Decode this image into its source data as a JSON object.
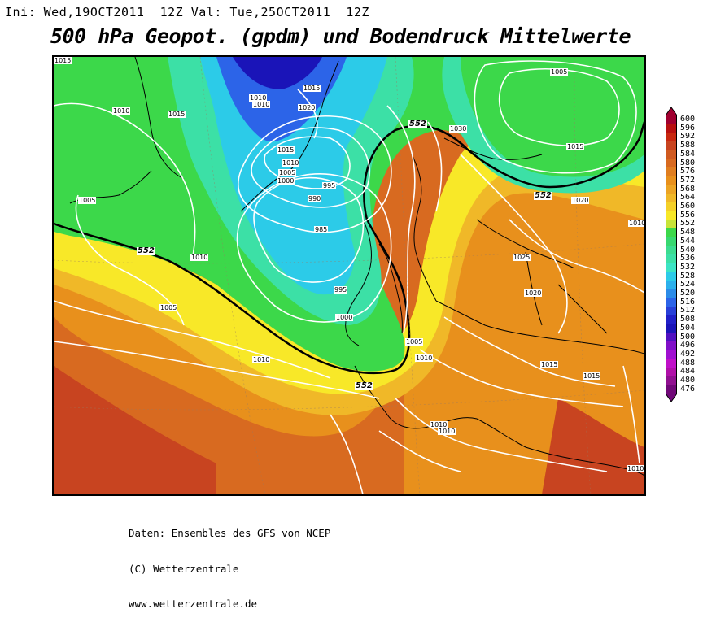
{
  "header": {
    "info_line": "Ini: Wed,19OCT2011  12Z Val: Tue,25OCT2011  12Z",
    "title": "500 hPa Geopot. (gpdm) und Bodendruck Mittelwerte"
  },
  "map": {
    "isobar_labels": [
      "1015",
      "1010",
      "1015",
      "1010",
      "1010",
      "1015",
      "1020",
      "1015",
      "1010",
      "1005",
      "1000",
      "995",
      "990",
      "985",
      "995",
      "1000",
      "1005",
      "1010",
      "1005",
      "1030",
      "1015",
      "1020",
      "1025",
      "1020",
      "1015",
      "1015",
      "1005",
      "1010",
      "1010",
      "1010",
      "1010",
      "1005",
      "1010",
      "1010"
    ],
    "geopotential_labels": [
      "552",
      "552",
      "552",
      "552",
      "552"
    ],
    "colors": {
      "dark_blue": "#1a14b8",
      "blue": "#2c64e8",
      "light_blue": "#2ccbe8",
      "cyan_green": "#3ce0a6",
      "green": "#3cd84a",
      "yellow_green": "#a4e040",
      "yellow": "#f8e828",
      "light_orange": "#f0b828",
      "orange": "#e8901c",
      "dark_orange": "#d86a20",
      "red_orange": "#c84420"
    }
  },
  "colorbar": {
    "values": [
      "600",
      "596",
      "592",
      "588",
      "584",
      "580",
      "576",
      "572",
      "568",
      "564",
      "560",
      "556",
      "552",
      "548",
      "544",
      "540",
      "536",
      "532",
      "528",
      "524",
      "520",
      "516",
      "512",
      "508",
      "504",
      "500",
      "496",
      "492",
      "488",
      "484",
      "480",
      "476"
    ],
    "colors": [
      "#a00030",
      "#b81010",
      "#c82810",
      "#c84420",
      "#d05a20",
      "#d86a20",
      "#e07e20",
      "#e8901c",
      "#eca424",
      "#f0b828",
      "#f4d028",
      "#f8e828",
      "#c8e438",
      "#3cd84a",
      "#38d870",
      "#3cdc90",
      "#3ce0a6",
      "#3ce4c4",
      "#2ccbe8",
      "#2cb0ec",
      "#2c8ce8",
      "#2c64e8",
      "#2840d8",
      "#2020c8",
      "#1a14b8",
      "#5010c0",
      "#8010c8",
      "#a010d0",
      "#c010c8",
      "#b010a8",
      "#901090",
      "#700878"
    ]
  },
  "footer": {
    "line1": "Daten: Ensembles des GFS von NCEP",
    "line2": "(C) Wetterzentrale",
    "line3": "www.wetterzentrale.de"
  }
}
